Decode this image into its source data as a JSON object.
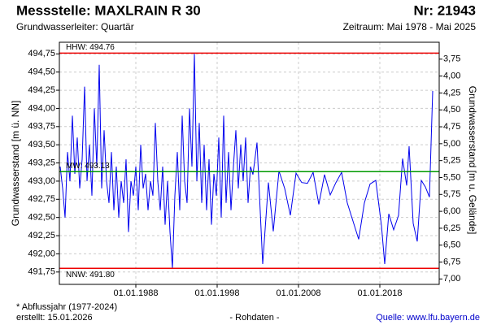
{
  "chart_data": {
    "type": "line",
    "title": "Messstelle: MAXLRAIN R 30",
    "subtitle": "Grundwasserleiter: Quartär",
    "id_label": "Nr: 21943",
    "period": "Zeitraum: Mai 1978 - Mai 2025",
    "y_label": "Grundwasserstand [m ü. NN]",
    "y2_label": "Grundwasserstand [m u. Gelände]",
    "footnote": "* Abflussjahr (1977-2024)",
    "created": "erstellt:  15.01.2026",
    "data_kind": "- Rohdaten -",
    "source": "Quelle: www.lfu.bayern.de",
    "color": "#0000ee",
    "grid": true,
    "x": [
      1978.7,
      1979.0,
      1979.3,
      1979.6,
      1979.9,
      1980.2,
      1980.5,
      1980.8,
      1981.1,
      1981.4,
      1981.7,
      1982.0,
      1982.3,
      1982.6,
      1982.9,
      1983.2,
      1983.5,
      1983.8,
      1984.1,
      1984.4,
      1984.7,
      1985.0,
      1985.3,
      1985.6,
      1985.9,
      1986.2,
      1986.5,
      1986.8,
      1987.1,
      1987.4,
      1987.7,
      1988.0,
      1988.3,
      1988.6,
      1988.9,
      1989.2,
      1989.5,
      1989.8,
      1990.1,
      1990.4,
      1990.7,
      1991.0,
      1991.3,
      1991.6,
      1991.9,
      1992.2,
      1992.5,
      1992.8,
      1993.1,
      1993.4,
      1993.7,
      1994.0,
      1994.3,
      1994.6,
      1994.9,
      1995.2,
      1995.5,
      1995.8,
      1996.1,
      1996.4,
      1996.7,
      1997.0,
      1997.3,
      1997.6,
      1997.9,
      1998.2,
      1998.5,
      1998.8,
      1999.1,
      1999.4,
      1999.7,
      2000.0,
      2000.3,
      2000.6,
      2000.9,
      2001.2,
      2001.5,
      2001.8,
      2002.1,
      2002.4,
      2002.9,
      2003.6,
      2004.3,
      2004.9,
      2005.6,
      2006.3,
      2007.0,
      2007.7,
      2008.4,
      2009.1,
      2009.8,
      2010.5,
      2011.2,
      2011.9,
      2012.6,
      2013.3,
      2014.0,
      2014.7,
      2015.4,
      2016.1,
      2016.8,
      2017.5,
      2018.2,
      2018.6,
      2019.1,
      2019.7,
      2020.3,
      2020.8,
      2021.3,
      2021.6,
      2022.1,
      2022.6,
      2023.1,
      2023.6,
      2024.1,
      2024.5
    ],
    "values": [
      493.2,
      492.9,
      492.5,
      493.4,
      493.0,
      493.9,
      493.1,
      493.6,
      492.9,
      493.3,
      494.3,
      493.0,
      493.5,
      492.8,
      494.0,
      493.2,
      494.6,
      492.9,
      493.7,
      493.0,
      492.7,
      493.4,
      492.6,
      493.2,
      492.5,
      493.0,
      492.7,
      493.3,
      492.3,
      493.0,
      492.8,
      493.2,
      492.6,
      493.5,
      492.9,
      493.1,
      492.6,
      493.0,
      492.8,
      493.8,
      493.0,
      492.6,
      493.2,
      492.4,
      493.0,
      492.3,
      491.8,
      492.8,
      493.4,
      492.6,
      493.9,
      493.0,
      492.7,
      494.0,
      493.2,
      494.75,
      493.0,
      493.8,
      492.7,
      493.5,
      492.6,
      493.3,
      492.4,
      493.1,
      492.8,
      493.6,
      492.5,
      493.9,
      492.7,
      493.4,
      492.6,
      493.2,
      493.7,
      492.9,
      493.5,
      493.0,
      493.6,
      492.7,
      493.2,
      493.09,
      493.53,
      491.86,
      492.98,
      492.31,
      493.14,
      492.9,
      492.53,
      493.11,
      492.98,
      492.97,
      493.12,
      492.68,
      493.09,
      492.81,
      492.98,
      493.12,
      492.7,
      492.45,
      492.2,
      492.7,
      492.96,
      493.01,
      492.39,
      491.86,
      492.55,
      492.33,
      492.53,
      493.31,
      492.94,
      493.48,
      492.42,
      492.17,
      493.01,
      492.92,
      492.78,
      494.24
    ],
    "xlim": [
      1978.6,
      2025.3
    ],
    "xticks": [
      {
        "value": 1988,
        "label": "01.01.1988"
      },
      {
        "value": 1998,
        "label": "01.01.1998"
      },
      {
        "value": 2008,
        "label": "01.01.2008"
      },
      {
        "value": 2018,
        "label": "01.01.2018"
      }
    ],
    "ylim": [
      491.58,
      494.91
    ],
    "yticks": [
      {
        "value": 491.75,
        "label": "491,75"
      },
      {
        "value": 492,
        "label": "492,00"
      },
      {
        "value": 492.25,
        "label": "492,25"
      },
      {
        "value": 492.5,
        "label": "492,50"
      },
      {
        "value": 492.75,
        "label": "492,75"
      },
      {
        "value": 493,
        "label": "493,00"
      },
      {
        "value": 493.25,
        "label": "493,25"
      },
      {
        "value": 493.5,
        "label": "493,50"
      },
      {
        "value": 493.75,
        "label": "493,75"
      },
      {
        "value": 494,
        "label": "494,00"
      },
      {
        "value": 494.25,
        "label": "494,25"
      },
      {
        "value": 494.5,
        "label": "494,50"
      },
      {
        "value": 494.75,
        "label": "494,75"
      }
    ],
    "y2lim": [
      7.08,
      3.5
    ],
    "y2ticks": [
      {
        "value": 3.75,
        "label": "3,75"
      },
      {
        "value": 4,
        "label": "4,00"
      },
      {
        "value": 4.25,
        "label": "4,25"
      },
      {
        "value": 4.5,
        "label": "4,50"
      },
      {
        "value": 4.75,
        "label": "4,75"
      },
      {
        "value": 5,
        "label": "5,00"
      },
      {
        "value": 5.25,
        "label": "5,25"
      },
      {
        "value": 5.5,
        "label": "5,50"
      },
      {
        "value": 5.75,
        "label": "5,75"
      },
      {
        "value": 6,
        "label": "6,00"
      },
      {
        "value": 6.25,
        "label": "6,25"
      },
      {
        "value": 6.5,
        "label": "6,50"
      },
      {
        "value": 6.75,
        "label": "6,75"
      },
      {
        "value": 7,
        "label": "7,00"
      }
    ],
    "reference_lines": [
      {
        "label": "HHW: 494.76",
        "value": 494.76,
        "color": "#ee0000"
      },
      {
        "label": "MW: 493.13",
        "value": 493.13,
        "color": "#009900"
      },
      {
        "label": "NNW: 491.80",
        "value": 491.8,
        "color": "#ee0000"
      }
    ]
  }
}
